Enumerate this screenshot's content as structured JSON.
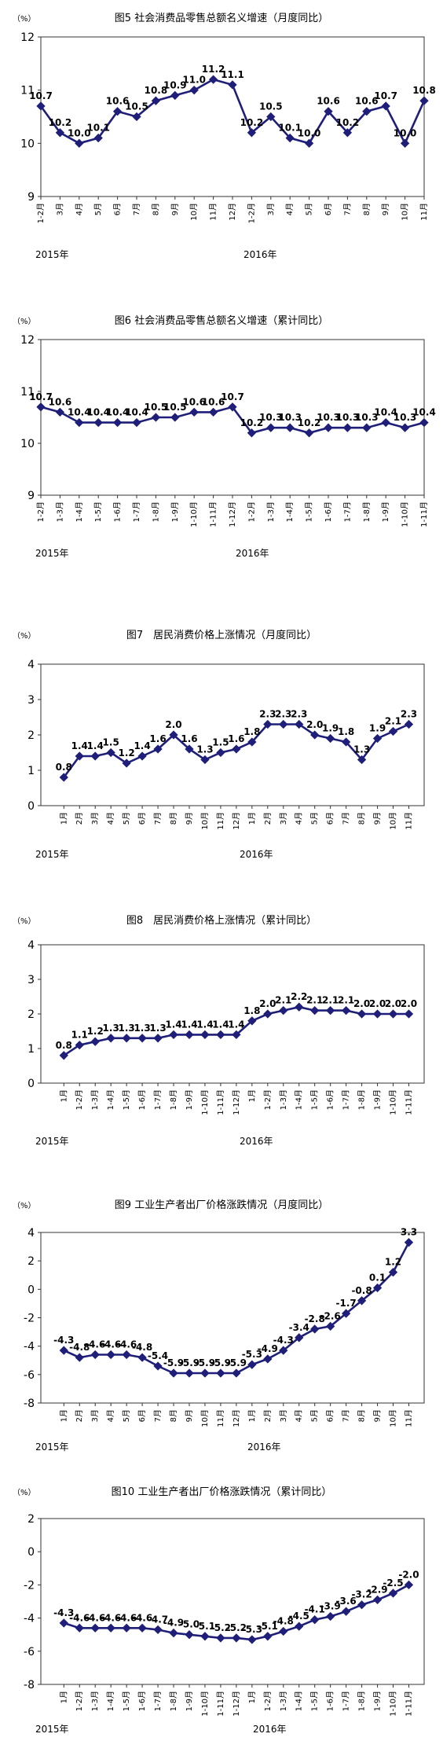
{
  "colors": {
    "line": "#1f1f7a",
    "axis": "#333333",
    "grid": "#d9d9d9",
    "text": "#000000",
    "background": "#ffffff"
  },
  "chart_data": {
    "panels": [
      {
        "type": "line",
        "chart_title": "图5 社会消费品零售总额名义增速（月度同比）",
        "unit_label": "（%）",
        "yticks": [
          9,
          10,
          11,
          12
        ],
        "tick_labels": [
          "1-2月",
          "3月",
          "4月",
          "5月",
          "6月",
          "7月",
          "8月",
          "9月",
          "10月",
          "11月",
          "12月",
          "1-2月",
          "3月",
          "4月",
          "5月",
          "6月",
          "7月",
          "8月",
          "9月",
          "10月",
          "11月"
        ],
        "years": [
          "2015年",
          "2016年"
        ],
        "plot_xstart": 0.0,
        "plot_xend": 1.0,
        "series": [
          {
            "values": [
              10.7,
              10.2,
              10.0,
              10.1,
              10.6,
              10.5,
              10.8,
              10.9,
              11.0,
              11.2,
              11.1,
              10.2,
              10.5,
              10.1,
              10.0,
              10.6,
              10.2,
              10.6,
              10.7,
              10.0,
              10.8
            ]
          }
        ]
      },
      {
        "type": "line",
        "chart_title": "图6 社会消费品零售总额名义增速（累计同比）",
        "unit_label": "（%）",
        "yticks": [
          9,
          10,
          11,
          12
        ],
        "tick_labels": [
          "1-2月",
          "1-3月",
          "1-4月",
          "1-5月",
          "1-6月",
          "1-7月",
          "1-8月",
          "1-9月",
          "1-10月",
          "1-11月",
          "1-12月",
          "1-2月",
          "1-3月",
          "1-4月",
          "1-5月",
          "1-6月",
          "1-7月",
          "1-8月",
          "1-9月",
          "1-10月",
          "1-11月"
        ],
        "years": [
          "2015年",
          "2016年"
        ],
        "plot_xstart": 0.0,
        "plot_xend": 1.0,
        "series": [
          {
            "values": [
              10.7,
              10.6,
              10.4,
              10.4,
              10.4,
              10.4,
              10.5,
              10.5,
              10.6,
              10.6,
              10.7,
              10.2,
              10.3,
              10.3,
              10.2,
              10.3,
              10.3,
              10.3,
              10.4,
              10.3,
              10.4
            ]
          }
        ]
      },
      {
        "type": "line",
        "chart_title": "图7　居民消费价格上涨情况（月度同比）",
        "unit_label": "（%）",
        "yticks": [
          0,
          1,
          2,
          3,
          4
        ],
        "tick_labels": [
          "1月",
          "2月",
          "3月",
          "4月",
          "5月",
          "6月",
          "7月",
          "8月",
          "9月",
          "10月",
          "11月",
          "12月",
          "1月",
          "2月",
          "3月",
          "4月",
          "5月",
          "6月",
          "7月",
          "8月",
          "9月",
          "10月",
          "11月"
        ],
        "years": [
          "2015年",
          "2016年"
        ],
        "series": [
          {
            "values": [
              0.8,
              1.4,
              1.4,
              1.5,
              1.2,
              1.4,
              1.6,
              2.0,
              1.6,
              1.3,
              1.5,
              1.6,
              1.8,
              2.3,
              2.3,
              2.3,
              2.0,
              1.9,
              1.8,
              1.3,
              1.9,
              2.1,
              2.3
            ]
          }
        ]
      },
      {
        "type": "line",
        "chart_title": "图8　居民消费价格上涨情况（累计同比）",
        "unit_label": "（%）",
        "yticks": [
          0,
          1,
          2,
          3,
          4
        ],
        "tick_labels": [
          "1月",
          "1-2月",
          "1-3月",
          "1-4月",
          "1-5月",
          "1-6月",
          "1-7月",
          "1-8月",
          "1-9月",
          "1-10月",
          "1-11月",
          "1-12月",
          "1月",
          "1-2月",
          "1-3月",
          "1-4月",
          "1-5月",
          "1-6月",
          "1-7月",
          "1-8月",
          "1-9月",
          "1-10月",
          "1-11月"
        ],
        "years": [
          "2015年",
          "2016年"
        ],
        "series": [
          {
            "values": [
              0.8,
              1.1,
              1.2,
              1.3,
              1.3,
              1.3,
              1.3,
              1.4,
              1.4,
              1.4,
              1.4,
              1.4,
              1.8,
              2.0,
              2.1,
              2.2,
              2.1,
              2.1,
              2.1,
              2.0,
              2.0,
              2.0,
              2.0
            ]
          }
        ]
      },
      {
        "type": "line",
        "chart_title": "图9 工业生产者出厂价格涨跌情况（月度同比）",
        "unit_label": "（%）",
        "yticks": [
          -8,
          -6,
          -4,
          -2,
          0,
          2,
          4
        ],
        "tick_labels": [
          "1月",
          "2月",
          "3月",
          "4月",
          "5月",
          "6月",
          "7月",
          "8月",
          "9月",
          "10月",
          "11月",
          "12月",
          "1月",
          "2月",
          "3月",
          "4月",
          "5月",
          "6月",
          "7月",
          "8月",
          "9月",
          "10月",
          "11月"
        ],
        "years": [
          "2015年",
          "2016年"
        ],
        "series": [
          {
            "values": [
              -4.3,
              -4.8,
              -4.6,
              -4.6,
              -4.6,
              -4.8,
              -5.4,
              -5.9,
              -5.9,
              -5.9,
              -5.9,
              -5.9,
              -5.3,
              -4.9,
              -4.3,
              -3.4,
              -2.8,
              -2.6,
              -1.7,
              -0.8,
              0.1,
              1.2,
              3.3
            ]
          }
        ]
      },
      {
        "type": "line",
        "chart_title": "图10 工业生产者出厂价格涨跌情况（累计同比）",
        "unit_label": "（%）",
        "yticks": [
          -8,
          -6,
          -4,
          -2,
          0,
          2
        ],
        "tick_labels": [
          "1月",
          "1-2月",
          "1-3月",
          "1-4月",
          "1-5月",
          "1-6月",
          "1-7月",
          "1-8月",
          "1-9月",
          "1-10月",
          "1-11月",
          "1-12月",
          "1月",
          "1-2月",
          "1-3月",
          "1-4月",
          "1-5月",
          "1-6月",
          "1-7月",
          "1-8月",
          "1-9月",
          "1-10月",
          "1-11月"
        ],
        "years": [
          "2015年",
          "2016年"
        ],
        "series": [
          {
            "values": [
              -4.3,
              -4.6,
              -4.6,
              -4.6,
              -4.6,
              -4.6,
              -4.7,
              -4.9,
              -5.0,
              -5.1,
              -5.2,
              -5.2,
              -5.3,
              -5.1,
              -4.8,
              -4.5,
              -4.1,
              -3.9,
              -3.6,
              -3.2,
              -2.9,
              -2.5,
              -2.0
            ]
          }
        ]
      }
    ]
  }
}
